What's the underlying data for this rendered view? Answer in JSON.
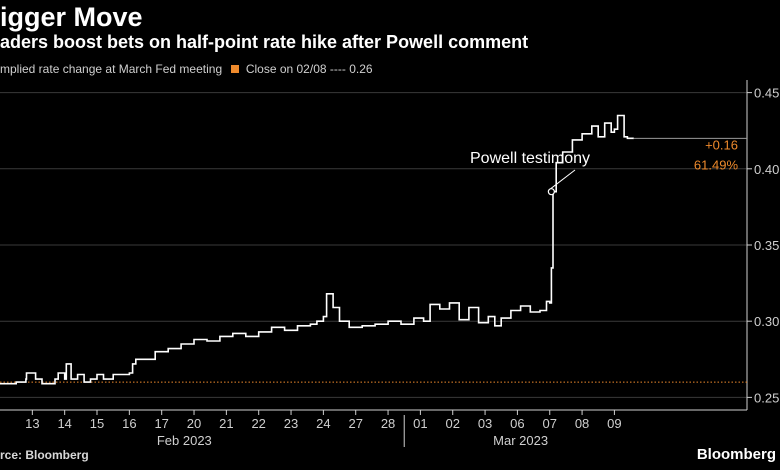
{
  "header": {
    "title": "igger Move",
    "subtitle": "aders boost bets on half-point rate hike after Powell comment"
  },
  "legend": {
    "series_label": "mplied rate change at March Fed meeting",
    "close_label": "Close on 02/08 ---- 0.26"
  },
  "footer": {
    "source": "rce: Bloomberg",
    "brand": "Bloomberg"
  },
  "colors": {
    "line": "#ffffff",
    "reference": "#ee8a2c",
    "grid": "#3a3a3a",
    "text": "#cfcfcf"
  },
  "chart_data": {
    "type": "line",
    "title": "igger Move",
    "subtitle": "aders boost bets on half-point rate hike after Powell comment",
    "ylim": [
      0.245,
      0.455
    ],
    "yticks": [
      0.25,
      0.3,
      0.35,
      0.4,
      0.45
    ],
    "ytick_labels": [
      "0.25",
      "0.30",
      "0.35",
      "0.40",
      "0.45"
    ],
    "xlim": [
      0,
      23.1
    ],
    "xticks": [
      {
        "x": 1,
        "label": "13"
      },
      {
        "x": 2,
        "label": "14"
      },
      {
        "x": 3,
        "label": "15"
      },
      {
        "x": 4,
        "label": "16"
      },
      {
        "x": 5,
        "label": "17"
      },
      {
        "x": 6,
        "label": "20"
      },
      {
        "x": 7,
        "label": "21"
      },
      {
        "x": 8,
        "label": "22"
      },
      {
        "x": 9,
        "label": "23"
      },
      {
        "x": 10,
        "label": "24"
      },
      {
        "x": 11,
        "label": "27"
      },
      {
        "x": 12,
        "label": "28"
      },
      {
        "x": 13,
        "label": "01"
      },
      {
        "x": 14,
        "label": "02"
      },
      {
        "x": 15,
        "label": "03"
      },
      {
        "x": 16,
        "label": "06"
      },
      {
        "x": 17,
        "label": "07"
      },
      {
        "x": 18,
        "label": "08"
      },
      {
        "x": 19,
        "label": "09"
      }
    ],
    "month_labels": [
      {
        "x": 5.7,
        "label": "Feb 2023"
      },
      {
        "x": 16.1,
        "label": "Mar 2023"
      }
    ],
    "month_separator_x": 12.5,
    "reference_line": {
      "value": 0.26,
      "label": "Close on 02/08"
    },
    "series": [
      {
        "name": "Implied rate change at March Fed meeting",
        "x": [
          0,
          0.5,
          0.8,
          0.82,
          1.1,
          1.3,
          1.7,
          1.8,
          2.0,
          2.05,
          2.2,
          2.4,
          2.6,
          2.8,
          3.0,
          3.2,
          3.5,
          3.8,
          4.0,
          4.1,
          4.2,
          4.5,
          4.8,
          5.2,
          5.6,
          6.0,
          6.4,
          6.8,
          7.2,
          7.6,
          8.0,
          8.4,
          8.8,
          9.2,
          9.6,
          9.8,
          10.0,
          10.1,
          10.3,
          10.5,
          10.8,
          11.2,
          11.6,
          12.0,
          12.4,
          12.8,
          13.1,
          13.3,
          13.6,
          13.9,
          14.2,
          14.5,
          14.8,
          15.1,
          15.3,
          15.5,
          15.8,
          16.1,
          16.4,
          16.7,
          16.9,
          17.0,
          17.05,
          17.1,
          17.2,
          17.4,
          17.7,
          18.0,
          18.3,
          18.5,
          18.7,
          18.9,
          19.0,
          19.1,
          19.3,
          19.4,
          19.6
        ],
        "y": [
          0.259,
          0.26,
          0.262,
          0.266,
          0.262,
          0.259,
          0.262,
          0.266,
          0.262,
          0.272,
          0.262,
          0.265,
          0.26,
          0.262,
          0.265,
          0.262,
          0.265,
          0.265,
          0.266,
          0.272,
          0.275,
          0.275,
          0.28,
          0.282,
          0.285,
          0.288,
          0.287,
          0.29,
          0.292,
          0.29,
          0.293,
          0.296,
          0.294,
          0.297,
          0.298,
          0.3,
          0.303,
          0.318,
          0.309,
          0.3,
          0.296,
          0.297,
          0.298,
          0.3,
          0.298,
          0.302,
          0.3,
          0.311,
          0.308,
          0.312,
          0.301,
          0.309,
          0.299,
          0.303,
          0.297,
          0.302,
          0.307,
          0.31,
          0.306,
          0.307,
          0.313,
          0.312,
          0.335,
          0.385,
          0.404,
          0.411,
          0.419,
          0.423,
          0.428,
          0.421,
          0.43,
          0.424,
          0.426,
          0.435,
          0.421,
          0.42,
          0.42
        ]
      }
    ],
    "annotations": [
      {
        "text": "Powell testimony",
        "x": 17.05,
        "y": 0.385
      },
      {
        "text": "+0.16",
        "x": 19.6,
        "y": 0.416
      },
      {
        "text": "61.49%",
        "x": 19.6,
        "y": 0.404
      }
    ]
  }
}
